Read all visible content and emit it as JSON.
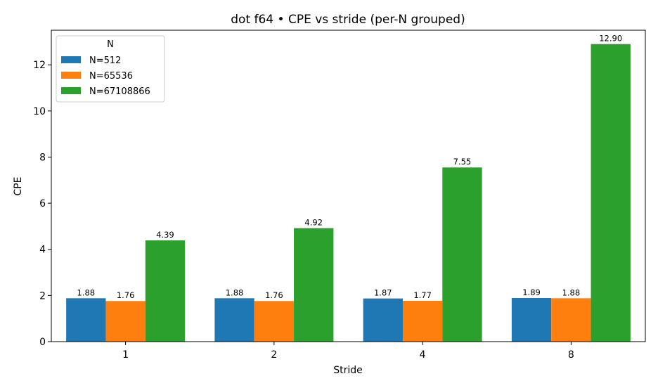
{
  "chart_data": {
    "type": "bar",
    "title": "dot f64 • CPE vs stride (per-N grouped)",
    "xlabel": "Stride",
    "ylabel": "CPE",
    "categories": [
      "1",
      "2",
      "4",
      "8"
    ],
    "ylim": [
      0,
      13.5
    ],
    "yticks": [
      0,
      2,
      4,
      6,
      8,
      10,
      12
    ],
    "legend": {
      "title": "N",
      "placement": "top-left"
    },
    "series": [
      {
        "name": "N=512",
        "color": "#1f77b4",
        "values": [
          1.88,
          1.88,
          1.87,
          1.89
        ],
        "labels": [
          "1.88",
          "1.88",
          "1.87",
          "1.89"
        ]
      },
      {
        "name": "N=65536",
        "color": "#ff7f0e",
        "values": [
          1.76,
          1.76,
          1.77,
          1.88
        ],
        "labels": [
          "1.76",
          "1.76",
          "1.77",
          "1.88"
        ]
      },
      {
        "name": "N=67108866",
        "color": "#2ca02c",
        "values": [
          4.39,
          4.92,
          7.55,
          12.9
        ],
        "labels": [
          "4.39",
          "4.92",
          "7.55",
          "12.90"
        ]
      }
    ]
  }
}
